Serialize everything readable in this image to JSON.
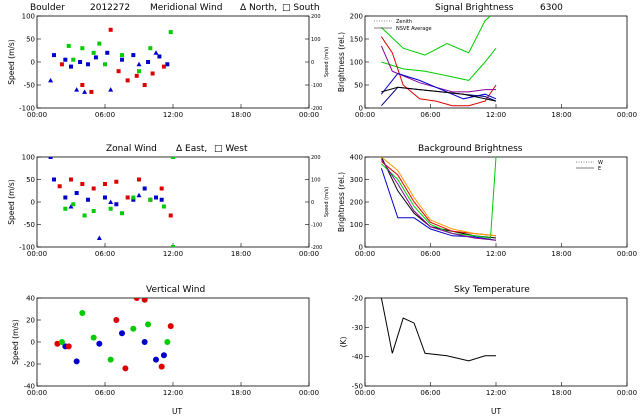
{
  "figure": {
    "station": "Boulder",
    "date_code": "2012272",
    "xlabel": "UT"
  },
  "chart_data": [
    {
      "type": "scatter",
      "title": "Meridional Wind",
      "legend": [
        "Δ North,",
        "□ South"
      ],
      "ylabel": "Speed (m/s)",
      "ylabel_right": "Speed (m/s)",
      "xlim": [
        0,
        24
      ],
      "ylim": [
        -100,
        100
      ],
      "ylim_right": [
        -200,
        200
      ],
      "x_ticks": [
        "00:00",
        "06:00",
        "12:00",
        "18:00",
        "00:00"
      ],
      "y_ticks": [
        "100",
        "50",
        "0",
        "-50",
        "-100"
      ],
      "y_ticks_right": [
        "200",
        "100",
        "0",
        "-100",
        "-200"
      ],
      "series": [
        {
          "color": "#0000cc",
          "marker": "square",
          "x": [
            1.5,
            2.5,
            3.0,
            3.8,
            4.5,
            5.2,
            6.2,
            7.5,
            8.5,
            9.8,
            10.8,
            11.5
          ],
          "y": [
            15,
            5,
            -10,
            0,
            -5,
            10,
            20,
            5,
            15,
            0,
            12,
            -5
          ]
        },
        {
          "color": "#0000cc",
          "marker": "triangle",
          "x": [
            1.2,
            3.5,
            4.2,
            6.5,
            9.0,
            10.5
          ],
          "y": [
            -40,
            -60,
            -65,
            -60,
            -5,
            20
          ]
        },
        {
          "color": "#dd0000",
          "marker": "square",
          "x": [
            2.2,
            4.0,
            4.8,
            6.5,
            7.2,
            8.0,
            8.8,
            9.5,
            10.2,
            11.2
          ],
          "y": [
            -5,
            -50,
            -65,
            70,
            -20,
            -40,
            -30,
            -50,
            -25,
            -10
          ]
        },
        {
          "color": "#00cc00",
          "marker": "square",
          "x": [
            2.8,
            3.2,
            4.0,
            5.0,
            5.5,
            6.0,
            7.5,
            9.0,
            10.0,
            11.8
          ],
          "y": [
            35,
            5,
            30,
            20,
            40,
            -5,
            15,
            -20,
            30,
            65
          ]
        }
      ]
    },
    {
      "type": "line",
      "title": "Signal Brightness",
      "wavelength": "6300",
      "legend": [
        "Zenith",
        "NSVE Average"
      ],
      "ylabel": "Brightness (rel.)",
      "xlim": [
        0,
        24
      ],
      "ylim": [
        0,
        200
      ],
      "x_ticks": [
        "00:00",
        "06:00",
        "12:00",
        "18:00",
        "00:00"
      ],
      "y_ticks": [
        "200",
        "150",
        "100",
        "50",
        "0"
      ],
      "series": [
        {
          "color": "#00cc00",
          "x": [
            1.5,
            3.5,
            5.5,
            7.5,
            9.5,
            11.0,
            12.0
          ],
          "y": [
            100,
            85,
            80,
            70,
            60,
            100,
            130
          ]
        },
        {
          "color": "#00cc00",
          "x": [
            1.5,
            3.5,
            5.5,
            7.5,
            9.5,
            11.0,
            12.0
          ],
          "y": [
            175,
            130,
            115,
            140,
            120,
            190,
            210
          ]
        },
        {
          "color": "#dd0000",
          "x": [
            1.5,
            2.5,
            3.5,
            5.0,
            6.5,
            8.0,
            9.5,
            11.0,
            12.0
          ],
          "y": [
            155,
            120,
            50,
            20,
            15,
            5,
            5,
            15,
            50
          ]
        },
        {
          "color": "#880099",
          "x": [
            1.5,
            2.5,
            3.5,
            5.0,
            6.5,
            8.0,
            9.5,
            11.0,
            12.0
          ],
          "y": [
            135,
            80,
            70,
            55,
            45,
            35,
            35,
            40,
            40
          ]
        },
        {
          "color": "#0000cc",
          "x": [
            1.5,
            3.0,
            5.0,
            7.0,
            9.0,
            11.0,
            12.0
          ],
          "y": [
            30,
            75,
            60,
            40,
            20,
            30,
            20
          ]
        },
        {
          "color": "#000080",
          "x": [
            1.5,
            3.0,
            5.0,
            7.0,
            9.0,
            11.0,
            12.0
          ],
          "y": [
            5,
            45,
            40,
            35,
            30,
            25,
            15
          ]
        },
        {
          "color": "#000000",
          "x": [
            1.5,
            3.0,
            5.0,
            7.0,
            9.0,
            11.0,
            12.0
          ],
          "y": [
            35,
            45,
            40,
            35,
            30,
            20,
            15
          ]
        }
      ]
    },
    {
      "type": "scatter",
      "title": "Zonal Wind",
      "legend": [
        "Δ East,",
        "□ West"
      ],
      "ylabel": "Speed (m/s)",
      "ylabel_right": "Speed (m/s)",
      "xlim": [
        0,
        24
      ],
      "ylim": [
        -100,
        100
      ],
      "ylim_right": [
        -200,
        200
      ],
      "x_ticks": [
        "00:00",
        "06:00",
        "12:00",
        "18:00",
        "00:00"
      ],
      "y_ticks": [
        "100",
        "50",
        "0",
        "-50",
        "-100"
      ],
      "y_ticks_right": [
        "200",
        "100",
        "0",
        "-100",
        "-200"
      ],
      "series": [
        {
          "color": "#0000cc",
          "marker": "square",
          "x": [
            1.2,
            1.5,
            2.5,
            3.5,
            4.5,
            6.0,
            7.0,
            8.5,
            9.5,
            10.5,
            11.0
          ],
          "y": [
            100,
            50,
            10,
            20,
            5,
            10,
            -5,
            5,
            30,
            10,
            5
          ]
        },
        {
          "color": "#0000cc",
          "marker": "triangle",
          "x": [
            3.0,
            5.5,
            6.5,
            9.0
          ],
          "y": [
            -10,
            -80,
            0,
            15
          ]
        },
        {
          "color": "#dd0000",
          "marker": "square",
          "x": [
            2.0,
            3.0,
            4.0,
            5.0,
            6.0,
            7.0,
            8.0,
            9.0,
            10.0,
            11.0,
            11.8
          ],
          "y": [
            35,
            50,
            40,
            30,
            40,
            45,
            10,
            50,
            5,
            30,
            -30
          ]
        },
        {
          "color": "#00cc00",
          "marker": "square",
          "x": [
            2.5,
            3.2,
            4.2,
            5.0,
            6.5,
            7.5,
            8.5,
            10.0,
            11.2,
            12.0,
            12.0
          ],
          "y": [
            -15,
            -5,
            -30,
            -20,
            -15,
            -25,
            10,
            5,
            -10,
            100,
            -100
          ]
        }
      ]
    },
    {
      "type": "line",
      "title": "Background Brightness",
      "legend": [
        "W",
        "E"
      ],
      "ylabel": "Brightness (rel.)",
      "xlim": [
        0,
        24
      ],
      "ylim": [
        0,
        400
      ],
      "x_ticks": [
        "00:00",
        "06:00",
        "12:00",
        "18:00",
        "00:00"
      ],
      "y_ticks": [
        "400",
        "300",
        "200",
        "100",
        "0"
      ],
      "series": [
        {
          "color": "#000000",
          "x": [
            1.5,
            3.0,
            4.5,
            6.0,
            8.0,
            10.0,
            12.0
          ],
          "y": [
            400,
            250,
            150,
            90,
            70,
            50,
            40
          ]
        },
        {
          "color": "#dd0000",
          "x": [
            1.5,
            3.0,
            4.5,
            6.0,
            8.0,
            10.0,
            12.0
          ],
          "y": [
            380,
            320,
            200,
            110,
            70,
            60,
            50
          ]
        },
        {
          "color": "#00cc00",
          "x": [
            1.5,
            3.0,
            4.5,
            6.0,
            8.0,
            10.0,
            11.5,
            12.0
          ],
          "y": [
            370,
            300,
            180,
            100,
            60,
            50,
            40,
            400
          ]
        },
        {
          "color": "#0000cc",
          "x": [
            1.5,
            3.0,
            4.5,
            6.0,
            8.0,
            10.0,
            12.0
          ],
          "y": [
            350,
            130,
            130,
            80,
            50,
            45,
            30
          ]
        },
        {
          "color": "#880099",
          "x": [
            1.5,
            3.0,
            4.5,
            6.0,
            8.0,
            10.0,
            12.0
          ],
          "y": [
            390,
            280,
            160,
            90,
            60,
            40,
            30
          ]
        },
        {
          "color": "#ff9900",
          "x": [
            1.5,
            3.0,
            4.5,
            6.0,
            8.0,
            10.0,
            12.0
          ],
          "y": [
            400,
            340,
            220,
            120,
            80,
            60,
            50
          ]
        }
      ]
    },
    {
      "type": "scatter",
      "title": "Vertical Wind",
      "ylabel": "Speed (m/s)",
      "xlim": [
        0,
        24
      ],
      "ylim": [
        -50,
        50
      ],
      "x_ticks": [
        "00:00",
        "06:00",
        "12:00",
        "18:00",
        "00:00"
      ],
      "y_ticks": [
        "40",
        "20",
        "0",
        "-20",
        "-40"
      ],
      "series": [
        {
          "color": "#0000cc",
          "marker": "circle",
          "x": [
            2.5,
            3.5,
            5.5,
            7.5,
            9.5,
            10.5,
            11.2
          ],
          "y": [
            -5,
            -22,
            -2,
            10,
            0,
            -20,
            -15
          ]
        },
        {
          "color": "#dd0000",
          "marker": "circle",
          "x": [
            1.8,
            2.8,
            7.0,
            7.8,
            8.8,
            9.5,
            11.0,
            11.8
          ],
          "y": [
            -2,
            -5,
            25,
            -30,
            50,
            48,
            -28,
            18
          ]
        },
        {
          "color": "#00cc00",
          "marker": "circle",
          "x": [
            2.2,
            4.0,
            5.0,
            6.5,
            8.5,
            9.8,
            11.5
          ],
          "y": [
            0,
            33,
            5,
            -20,
            15,
            20,
            0
          ]
        }
      ]
    },
    {
      "type": "line",
      "title": "Sky Temperature",
      "ylabel": "(K)",
      "xlim": [
        0,
        24
      ],
      "ylim": [
        -55,
        -20
      ],
      "x_ticks": [
        "00:00",
        "06:00",
        "12:00",
        "18:00",
        "00:00"
      ],
      "y_ticks": [
        "-20",
        "-30",
        "-40",
        "-50"
      ],
      "series": [
        {
          "color": "#000000",
          "x": [
            1.5,
            2.5,
            3.5,
            4.5,
            5.5,
            7.5,
            9.5,
            11.0,
            12.0
          ],
          "y": [
            -20,
            -42,
            -28,
            -30,
            -42,
            -43,
            -45,
            -43,
            -43
          ]
        }
      ]
    }
  ]
}
